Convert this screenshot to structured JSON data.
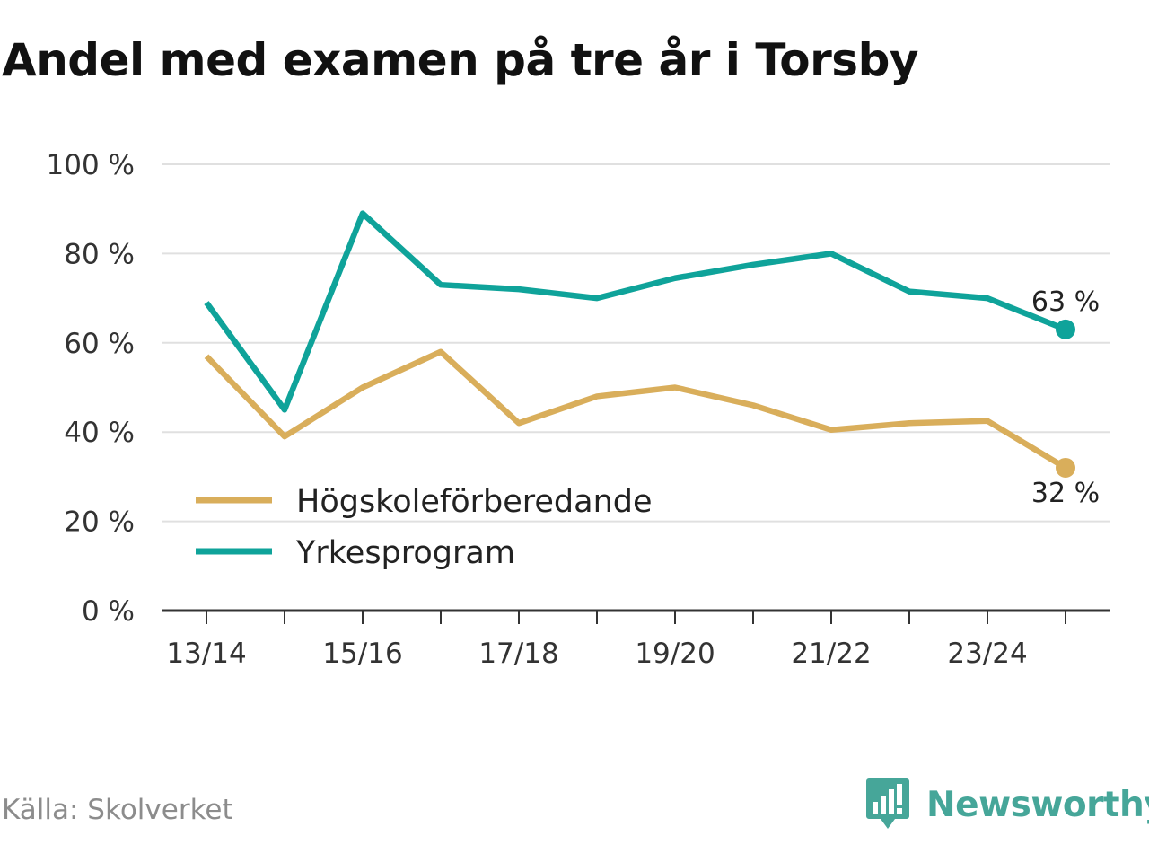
{
  "title": "Andel med examen på tre år i Torsby",
  "source": "Källa: Skolverket",
  "brand": {
    "name": "Newsworthy",
    "icon": "newsworthy-logo-icon"
  },
  "colors": {
    "hogskole": "#d9ae5b",
    "yrkes": "#0fa39a",
    "grid": "#e0e0e0",
    "axis": "#333333",
    "brand": "#46a699"
  },
  "chart_data": {
    "type": "line",
    "title": "Andel med examen på tre år i Torsby",
    "xlabel": "",
    "ylabel": "",
    "ylim": [
      0,
      100
    ],
    "y_ticks": [
      0,
      20,
      40,
      60,
      80,
      100
    ],
    "y_tick_labels": [
      "0 %",
      "20 %",
      "40 %",
      "60 %",
      "80 %",
      "100 %"
    ],
    "x": [
      "13/14",
      "14/15",
      "15/16",
      "16/17",
      "17/18",
      "18/19",
      "19/20",
      "20/21",
      "21/22",
      "22/23",
      "23/24",
      "24/25"
    ],
    "x_tick_labels": [
      "13/14",
      "",
      "15/16",
      "",
      "17/18",
      "",
      "19/20",
      "",
      "21/22",
      "",
      "23/24",
      ""
    ],
    "legend_position": "bottom-left",
    "series": [
      {
        "name": "Högskoleförberedande",
        "color": "#d9ae5b",
        "values": [
          57,
          39,
          50,
          58,
          42,
          48,
          50,
          46,
          40.5,
          42,
          42.5,
          32
        ],
        "end_label": "32 %"
      },
      {
        "name": "Yrkesprogram",
        "color": "#0fa39a",
        "values": [
          69,
          45,
          89,
          73,
          72,
          70,
          74.5,
          77.5,
          80,
          71.5,
          70,
          63
        ],
        "end_label": "63 %"
      }
    ]
  }
}
